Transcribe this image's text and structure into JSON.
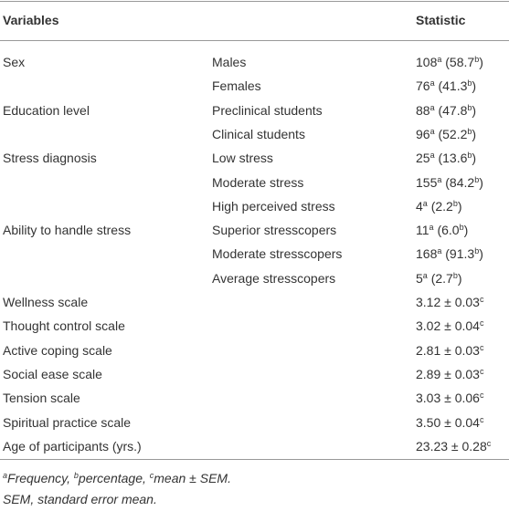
{
  "table": {
    "header": [
      "Variables",
      "Statistic"
    ],
    "rows": [
      {
        "variable": "Sex",
        "group": "Males",
        "statistic": [
          {
            "text": "108"
          },
          {
            "sup": "a"
          },
          {
            "text": " (58.7"
          },
          {
            "sup": "b"
          },
          {
            "text": ")"
          }
        ]
      },
      {
        "group": "Females",
        "statistic": [
          {
            "text": "76"
          },
          {
            "sup": "a"
          },
          {
            "text": " (41.3"
          },
          {
            "sup": "b"
          },
          {
            "text": ")"
          }
        ]
      },
      {
        "variable": "Education level",
        "group": "Preclinical students",
        "statistic": [
          {
            "text": "88"
          },
          {
            "sup": "a"
          },
          {
            "text": " (47.8"
          },
          {
            "sup": "b"
          },
          {
            "text": ")"
          }
        ]
      },
      {
        "group": "Clinical students",
        "statistic": [
          {
            "text": "96"
          },
          {
            "sup": "a"
          },
          {
            "text": " (52.2"
          },
          {
            "sup": "b"
          },
          {
            "text": ")"
          }
        ]
      },
      {
        "variable": "Stress diagnosis",
        "group": "Low stress",
        "statistic": [
          {
            "text": "25"
          },
          {
            "sup": "a"
          },
          {
            "text": " (13.6"
          },
          {
            "sup": "b"
          },
          {
            "text": ")"
          }
        ]
      },
      {
        "group": "Moderate stress",
        "statistic": [
          {
            "text": "155"
          },
          {
            "sup": "a"
          },
          {
            "text": " (84.2"
          },
          {
            "sup": "b"
          },
          {
            "text": ")"
          }
        ]
      },
      {
        "group": "High perceived stress",
        "statistic": [
          {
            "text": "4"
          },
          {
            "sup": "a"
          },
          {
            "text": " (2.2"
          },
          {
            "sup": "b"
          },
          {
            "text": ")"
          }
        ]
      },
      {
        "variable": "Ability to handle stress",
        "group": "Superior stresscopers",
        "statistic": [
          {
            "text": "11"
          },
          {
            "sup": "a"
          },
          {
            "text": " (6.0"
          },
          {
            "sup": "b"
          },
          {
            "text": ")"
          }
        ]
      },
      {
        "group": "Moderate stresscopers",
        "statistic": [
          {
            "text": "168"
          },
          {
            "sup": "a"
          },
          {
            "text": " (91.3"
          },
          {
            "sup": "b"
          },
          {
            "text": ")"
          }
        ]
      },
      {
        "group": "Average stresscopers",
        "statistic": [
          {
            "text": "5"
          },
          {
            "sup": "a"
          },
          {
            "text": " (2.7"
          },
          {
            "sup": "b"
          },
          {
            "text": ")"
          }
        ]
      },
      {
        "variable": "Wellness scale",
        "statistic": [
          {
            "text": "3.12 ± 0.03"
          },
          {
            "sup": "c"
          }
        ]
      },
      {
        "variable": "Thought control scale",
        "statistic": [
          {
            "text": "3.02 ± 0.04"
          },
          {
            "sup": "c"
          }
        ]
      },
      {
        "variable": "Active coping scale",
        "statistic": [
          {
            "text": "2.81 ± 0.03"
          },
          {
            "sup": "c"
          }
        ]
      },
      {
        "variable": "Social ease scale",
        "statistic": [
          {
            "text": "2.89 ± 0.03"
          },
          {
            "sup": "c"
          }
        ]
      },
      {
        "variable": "Tension scale",
        "statistic": [
          {
            "text": "3.03 ± 0.06"
          },
          {
            "sup": "c"
          }
        ]
      },
      {
        "variable": "Spiritual practice scale",
        "statistic": [
          {
            "text": "3.50 ± 0.04"
          },
          {
            "sup": "c"
          }
        ]
      },
      {
        "variable": "Age of participants (yrs.)",
        "statistic": [
          {
            "text": "23.23 ± 0.28"
          },
          {
            "sup": "c"
          }
        ]
      }
    ],
    "footnotes": [
      [
        {
          "sup": "a"
        },
        {
          "text": "Frequency, "
        },
        {
          "sup": "b"
        },
        {
          "text": "percentage, "
        },
        {
          "sup": "c"
        },
        {
          "text": "mean ± SEM."
        }
      ],
      [
        {
          "text": "SEM, standard error mean."
        }
      ]
    ]
  }
}
